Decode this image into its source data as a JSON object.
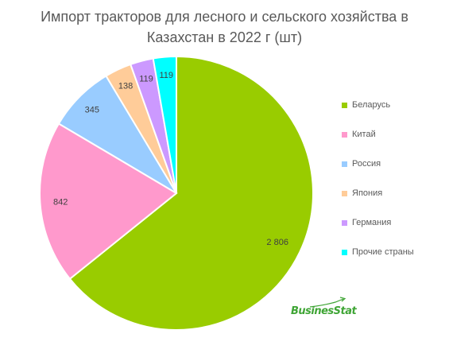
{
  "chart_data": {
    "type": "pie",
    "title_lines": [
      "Импорт тракторов для лесного и сельского хозяйства в",
      "Казахстан в 2022 г (шт)"
    ],
    "slices": [
      {
        "label": "Беларусь",
        "value": 2806,
        "value_label": "2 806",
        "color": "#99cc00"
      },
      {
        "label": "Китай",
        "value": 842,
        "value_label": "842",
        "color": "#ff99cc"
      },
      {
        "label": "Россия",
        "value": 345,
        "value_label": "345",
        "color": "#99ccff"
      },
      {
        "label": "Япония",
        "value": 138,
        "value_label": "138",
        "color": "#ffcc99"
      },
      {
        "label": "Германия",
        "value": 119,
        "value_label": "119",
        "color": "#cc99ff"
      },
      {
        "label": "Прочие страны",
        "value": 119,
        "value_label": "119",
        "color": "#00ffff"
      }
    ],
    "legend_position": "right",
    "start_angle": "12 o'clock",
    "direction": "clockwise"
  },
  "watermark": {
    "text": "BusinesStat",
    "color": "#3fa535"
  }
}
